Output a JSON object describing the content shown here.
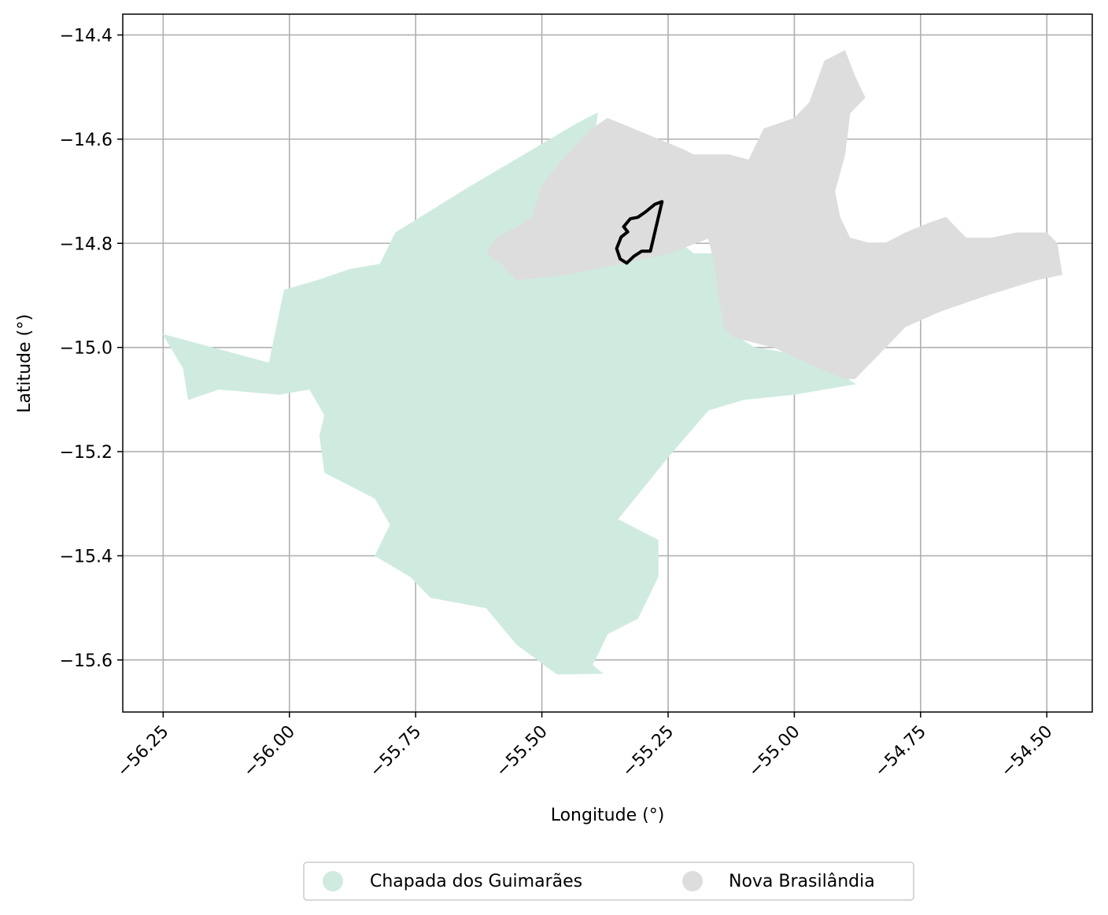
{
  "chart_data": {
    "type": "map",
    "xlabel": "Longitude (°)",
    "ylabel": "Latitude (°)",
    "xlim": [
      -56.33,
      -54.41
    ],
    "ylim": [
      -15.7,
      -14.36
    ],
    "x_ticks": [
      -56.25,
      -56.0,
      -55.75,
      -55.5,
      -55.25,
      -55.0,
      -54.75,
      -54.5
    ],
    "x_tick_labels": [
      "−56.25",
      "−56.00",
      "−55.75",
      "−55.50",
      "−55.25",
      "−55.00",
      "−54.75",
      "−54.50"
    ],
    "y_ticks": [
      -14.4,
      -14.6,
      -14.8,
      -15.0,
      -15.2,
      -15.4,
      -15.6
    ],
    "y_tick_labels": [
      "−14.4",
      "−14.6",
      "−14.8",
      "−15.0",
      "−15.2",
      "−15.4",
      "−15.6"
    ],
    "grid": true,
    "legend_position": "bottom-center",
    "regions": [
      {
        "name": "Chapada dos Guimarães",
        "color": "#cfebdf",
        "coords": [
          [
            -56.25,
            -14.975
          ],
          [
            -56.04,
            -15.03
          ],
          [
            -56.01,
            -14.89
          ],
          [
            -55.94,
            -14.87
          ],
          [
            -55.88,
            -14.85
          ],
          [
            -55.82,
            -14.84
          ],
          [
            -55.79,
            -14.78
          ],
          [
            -55.64,
            -14.69
          ],
          [
            -55.43,
            -14.57
          ],
          [
            -55.39,
            -14.55
          ],
          [
            -55.4,
            -14.62
          ],
          [
            -55.36,
            -14.67
          ],
          [
            -55.25,
            -14.78
          ],
          [
            -55.2,
            -14.82
          ],
          [
            -55.16,
            -14.82
          ],
          [
            -55.13,
            -14.97
          ],
          [
            -55.08,
            -15.0
          ],
          [
            -54.96,
            -15.02
          ],
          [
            -54.88,
            -15.07
          ],
          [
            -55.0,
            -15.09
          ],
          [
            -55.1,
            -15.1
          ],
          [
            -55.17,
            -15.12
          ],
          [
            -55.25,
            -15.21
          ],
          [
            -55.3,
            -15.27
          ],
          [
            -55.35,
            -15.33
          ],
          [
            -55.27,
            -15.37
          ],
          [
            -55.27,
            -15.44
          ],
          [
            -55.31,
            -15.52
          ],
          [
            -55.37,
            -15.55
          ],
          [
            -55.4,
            -15.61
          ],
          [
            -55.38,
            -15.626
          ],
          [
            -55.47,
            -15.627
          ],
          [
            -55.55,
            -15.57
          ],
          [
            -55.61,
            -15.5
          ],
          [
            -55.72,
            -15.48
          ],
          [
            -55.76,
            -15.44
          ],
          [
            -55.83,
            -15.4
          ],
          [
            -55.8,
            -15.34
          ],
          [
            -55.83,
            -15.29
          ],
          [
            -55.89,
            -15.26
          ],
          [
            -55.93,
            -15.24
          ],
          [
            -55.94,
            -15.17
          ],
          [
            -55.93,
            -15.13
          ],
          [
            -55.96,
            -15.08
          ],
          [
            -56.02,
            -15.09
          ],
          [
            -56.14,
            -15.08
          ],
          [
            -56.2,
            -15.1
          ],
          [
            -56.21,
            -15.04
          ]
        ]
      },
      {
        "name": "Nova Brasilândia",
        "color": "#dddddd",
        "coords": [
          [
            -55.61,
            -14.82
          ],
          [
            -55.58,
            -14.84
          ],
          [
            -55.55,
            -14.87
          ],
          [
            -55.45,
            -14.86
          ],
          [
            -55.35,
            -14.84
          ],
          [
            -55.25,
            -14.82
          ],
          [
            -55.17,
            -14.79
          ],
          [
            -55.16,
            -14.83
          ],
          [
            -55.14,
            -14.96
          ],
          [
            -55.12,
            -14.98
          ],
          [
            -55.04,
            -15.0
          ],
          [
            -54.95,
            -15.04
          ],
          [
            -54.9,
            -15.06
          ],
          [
            -54.88,
            -15.06
          ],
          [
            -54.86,
            -15.04
          ],
          [
            -54.78,
            -14.96
          ],
          [
            -54.71,
            -14.93
          ],
          [
            -54.62,
            -14.9
          ],
          [
            -54.52,
            -14.87
          ],
          [
            -54.47,
            -14.86
          ],
          [
            -54.48,
            -14.8
          ],
          [
            -54.5,
            -14.78
          ],
          [
            -54.56,
            -14.78
          ],
          [
            -54.61,
            -14.79
          ],
          [
            -54.66,
            -14.79
          ],
          [
            -54.7,
            -14.75
          ],
          [
            -54.73,
            -14.76
          ],
          [
            -54.78,
            -14.78
          ],
          [
            -54.82,
            -14.8
          ],
          [
            -54.85,
            -14.8
          ],
          [
            -54.89,
            -14.79
          ],
          [
            -54.91,
            -14.75
          ],
          [
            -54.92,
            -14.7
          ],
          [
            -54.9,
            -14.63
          ],
          [
            -54.89,
            -14.55
          ],
          [
            -54.86,
            -14.52
          ],
          [
            -54.88,
            -14.48
          ],
          [
            -54.9,
            -14.43
          ],
          [
            -54.92,
            -14.44
          ],
          [
            -54.94,
            -14.45
          ],
          [
            -54.97,
            -14.53
          ],
          [
            -55.0,
            -14.56
          ],
          [
            -55.06,
            -14.58
          ],
          [
            -55.09,
            -14.64
          ],
          [
            -55.13,
            -14.63
          ],
          [
            -55.2,
            -14.63
          ],
          [
            -55.22,
            -14.62
          ],
          [
            -55.27,
            -14.6
          ],
          [
            -55.32,
            -14.58
          ],
          [
            -55.37,
            -14.56
          ],
          [
            -55.4,
            -14.58
          ],
          [
            -55.42,
            -14.6
          ],
          [
            -55.46,
            -14.64
          ],
          [
            -55.5,
            -14.69
          ],
          [
            -55.52,
            -14.75
          ],
          [
            -55.55,
            -14.77
          ],
          [
            -55.59,
            -14.79
          ]
        ]
      }
    ],
    "highlight": {
      "color": "#000000",
      "coords": [
        [
          -55.262,
          -14.72
        ],
        [
          -55.276,
          -14.725
        ],
        [
          -55.295,
          -14.74
        ],
        [
          -55.31,
          -14.75
        ],
        [
          -55.325,
          -14.753
        ],
        [
          -55.338,
          -14.768
        ],
        [
          -55.33,
          -14.778
        ],
        [
          -55.343,
          -14.788
        ],
        [
          -55.352,
          -14.81
        ],
        [
          -55.345,
          -14.83
        ],
        [
          -55.332,
          -14.838
        ],
        [
          -55.318,
          -14.825
        ],
        [
          -55.302,
          -14.815
        ],
        [
          -55.292,
          -14.815
        ],
        [
          -55.285,
          -14.815
        ]
      ]
    },
    "legend": [
      {
        "label": "Chapada dos Guimarães",
        "color": "#cfebdf"
      },
      {
        "label": "Nova Brasilândia",
        "color": "#dddddd"
      }
    ]
  }
}
